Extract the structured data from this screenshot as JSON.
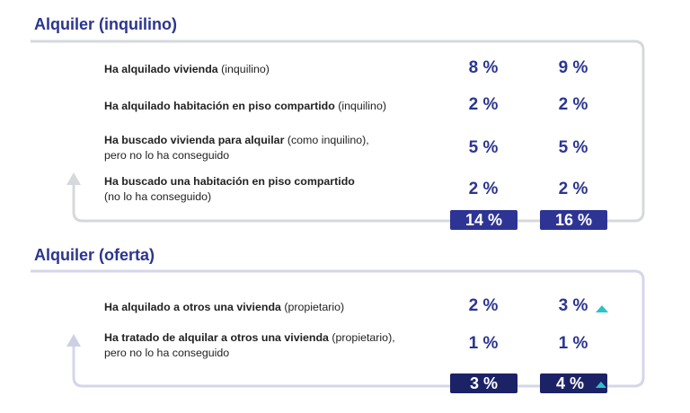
{
  "colors": {
    "title": "#2b3590",
    "value": "#2b3590",
    "total_bg_1": "#2e3494",
    "total_bg_2": "#1c2266",
    "frame_1": "#d6d8dc",
    "frame_2": "#d4d6ea",
    "arrow": "#cdd0e4",
    "up_marker": "#2bc3c6"
  },
  "sections": [
    {
      "title": "Alquiler (inquilino)",
      "rows": [
        {
          "bold": "Ha alquilado vivienda",
          "rest": " (inquilino)",
          "line2": "",
          "v1": "8 %",
          "v2": "9 %"
        },
        {
          "bold": "Ha alquilado habitación en piso compartido",
          "rest": " (inquilino)",
          "line2": "",
          "v1": "2 %",
          "v2": "2 %"
        },
        {
          "bold": "Ha buscado vivienda para alquilar",
          "rest": " (como inquilino),",
          "line2": "pero no lo ha conseguido",
          "v1": "5 %",
          "v2": "5 %"
        },
        {
          "bold": "Ha buscado una habitación en piso compartido",
          "rest": "",
          "line2": "(no lo ha conseguido)",
          "v1": "2 %",
          "v2": "2 %"
        }
      ],
      "totals": [
        "14 %",
        "16 %"
      ]
    },
    {
      "title": "Alquiler (oferta)",
      "rows": [
        {
          "bold": "Ha alquilado a otros una vivienda",
          "rest": " (propietario)",
          "line2": "",
          "v1": "2 %",
          "v2": "3 %",
          "v2_up_marker": "up-triangle-icon"
        },
        {
          "bold": "Ha tratado de alquilar a otros una vivienda",
          "rest": " (propietario),",
          "line2": "pero no lo ha conseguido",
          "v1": "1 %",
          "v2": "1 %"
        }
      ],
      "totals": [
        "3 %",
        "4 %"
      ],
      "total2_up_marker": "up-triangle-icon"
    }
  ]
}
